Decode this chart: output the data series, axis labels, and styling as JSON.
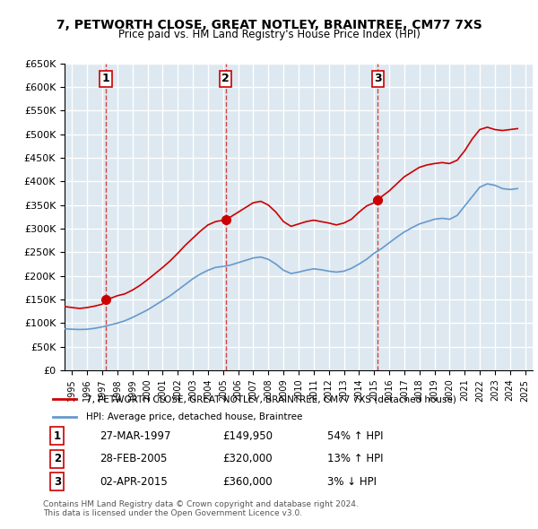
{
  "title": "7, PETWORTH CLOSE, GREAT NOTLEY, BRAINTREE, CM77 7XS",
  "subtitle": "Price paid vs. HM Land Registry's House Price Index (HPI)",
  "ylabel_ticks": [
    "£0",
    "£50K",
    "£100K",
    "£150K",
    "£200K",
    "£250K",
    "£300K",
    "£350K",
    "£400K",
    "£450K",
    "£500K",
    "£550K",
    "£600K",
    "£650K"
  ],
  "ylim": [
    0,
    650000
  ],
  "yticks": [
    0,
    50000,
    100000,
    150000,
    200000,
    250000,
    300000,
    350000,
    400000,
    450000,
    500000,
    550000,
    600000,
    650000
  ],
  "xlim_start": 1994.5,
  "xlim_end": 2025.5,
  "bg_color": "#dde8f0",
  "grid_color": "#ffffff",
  "sale_dates": [
    1997.23,
    2005.16,
    2015.25
  ],
  "sale_prices": [
    149950,
    320000,
    360000
  ],
  "sale_labels": [
    "1",
    "2",
    "3"
  ],
  "sale_info": [
    {
      "num": "1",
      "date": "27-MAR-1997",
      "price": "£149,950",
      "hpi": "54% ↑ HPI"
    },
    {
      "num": "2",
      "date": "28-FEB-2005",
      "price": "£320,000",
      "hpi": "13% ↑ HPI"
    },
    {
      "num": "3",
      "date": "02-APR-2015",
      "price": "£360,000",
      "hpi": "3% ↓ HPI"
    }
  ],
  "legend_line1": "7, PETWORTH CLOSE, GREAT NOTLEY, BRAINTREE, CM77 7XS (detached house)",
  "legend_line2": "HPI: Average price, detached house, Braintree",
  "footer1": "Contains HM Land Registry data © Crown copyright and database right 2024.",
  "footer2": "This data is licensed under the Open Government Licence v3.0.",
  "property_color": "#cc0000",
  "hpi_color": "#6699cc",
  "property_line_data": {
    "years": [
      1994.5,
      1995.0,
      1995.5,
      1996.0,
      1996.5,
      1997.0,
      1997.23,
      1997.5,
      1998.0,
      1998.5,
      1999.0,
      1999.5,
      2000.0,
      2000.5,
      2001.0,
      2001.5,
      2002.0,
      2002.5,
      2003.0,
      2003.5,
      2004.0,
      2004.5,
      2005.0,
      2005.16,
      2005.5,
      2006.0,
      2006.5,
      2007.0,
      2007.5,
      2008.0,
      2008.5,
      2009.0,
      2009.5,
      2010.0,
      2010.5,
      2011.0,
      2011.5,
      2012.0,
      2012.5,
      2013.0,
      2013.5,
      2014.0,
      2014.5,
      2015.0,
      2015.25,
      2015.5,
      2016.0,
      2016.5,
      2017.0,
      2017.5,
      2018.0,
      2018.5,
      2019.0,
      2019.5,
      2020.0,
      2020.5,
      2021.0,
      2021.5,
      2022.0,
      2022.5,
      2023.0,
      2023.5,
      2024.0,
      2024.5
    ],
    "values": [
      135000,
      133000,
      131000,
      133000,
      136000,
      140000,
      149950,
      152000,
      158000,
      162000,
      170000,
      180000,
      192000,
      205000,
      218000,
      232000,
      248000,
      265000,
      280000,
      295000,
      308000,
      315000,
      318000,
      320000,
      325000,
      335000,
      345000,
      355000,
      358000,
      350000,
      335000,
      315000,
      305000,
      310000,
      315000,
      318000,
      315000,
      312000,
      308000,
      312000,
      320000,
      335000,
      348000,
      355000,
      360000,
      368000,
      380000,
      395000,
      410000,
      420000,
      430000,
      435000,
      438000,
      440000,
      438000,
      445000,
      465000,
      490000,
      510000,
      515000,
      510000,
      508000,
      510000,
      512000
    ]
  },
  "hpi_line_data": {
    "years": [
      1994.5,
      1995.0,
      1995.5,
      1996.0,
      1996.5,
      1997.0,
      1997.5,
      1998.0,
      1998.5,
      1999.0,
      1999.5,
      2000.0,
      2000.5,
      2001.0,
      2001.5,
      2002.0,
      2002.5,
      2003.0,
      2003.5,
      2004.0,
      2004.5,
      2005.0,
      2005.5,
      2006.0,
      2006.5,
      2007.0,
      2007.5,
      2008.0,
      2008.5,
      2009.0,
      2009.5,
      2010.0,
      2010.5,
      2011.0,
      2011.5,
      2012.0,
      2012.5,
      2013.0,
      2013.5,
      2014.0,
      2014.5,
      2015.0,
      2015.5,
      2016.0,
      2016.5,
      2017.0,
      2017.5,
      2018.0,
      2018.5,
      2019.0,
      2019.5,
      2020.0,
      2020.5,
      2021.0,
      2021.5,
      2022.0,
      2022.5,
      2023.0,
      2023.5,
      2024.0,
      2024.5
    ],
    "values": [
      88000,
      87000,
      86500,
      87000,
      89000,
      92000,
      96000,
      100000,
      105000,
      112000,
      120000,
      128000,
      138000,
      148000,
      158000,
      170000,
      182000,
      194000,
      204000,
      212000,
      218000,
      220000,
      223000,
      228000,
      233000,
      238000,
      240000,
      235000,
      225000,
      212000,
      205000,
      208000,
      212000,
      215000,
      213000,
      210000,
      208000,
      210000,
      216000,
      225000,
      235000,
      248000,
      258000,
      270000,
      282000,
      293000,
      302000,
      310000,
      315000,
      320000,
      322000,
      320000,
      328000,
      348000,
      368000,
      388000,
      395000,
      392000,
      385000,
      383000,
      385000
    ]
  }
}
